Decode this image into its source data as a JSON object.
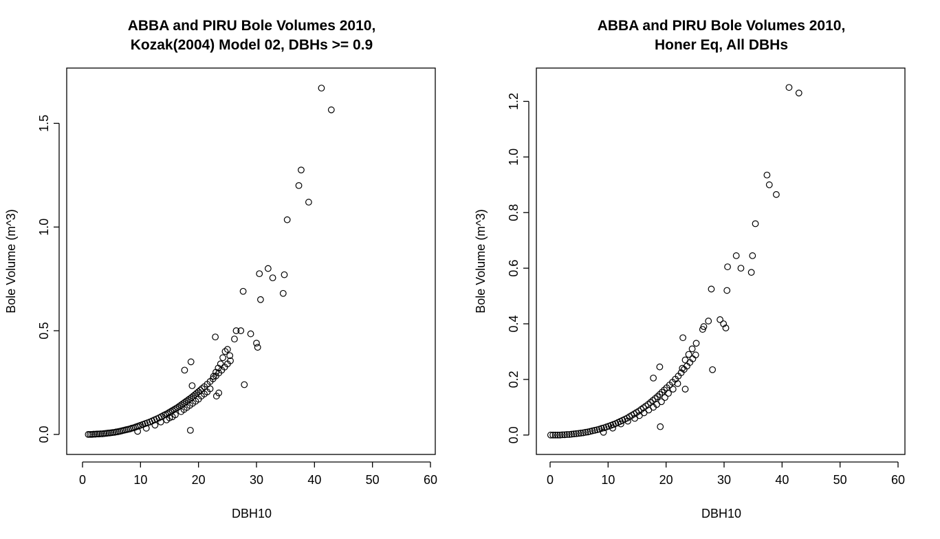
{
  "chart_data": [
    {
      "type": "scatter",
      "title": "ABBA and PIRU Bole Volumes 2010,",
      "subtitle": "Kozak(2004) Model 02, DBHs >= 0.9",
      "xlabel": "DBH10",
      "ylabel": "Bole Volume (m^3)",
      "xlim": [
        0,
        60
      ],
      "ylim": [
        -0.07,
        1.74
      ],
      "xticks": [
        0,
        10,
        20,
        30,
        40,
        50,
        60
      ],
      "yticks": [
        0.0,
        0.5,
        1.0,
        1.5
      ],
      "ytick_labels": [
        "0.0",
        "0.5",
        "1.0",
        "1.5"
      ],
      "grid": false,
      "legend": "none",
      "x": [
        1.0,
        1.3,
        1.6,
        1.9,
        2.2,
        2.5,
        2.8,
        3.1,
        3.4,
        3.7,
        4.0,
        4.3,
        4.6,
        4.9,
        5.2,
        5.5,
        5.8,
        6.1,
        6.4,
        6.7,
        7.0,
        7.3,
        7.6,
        7.9,
        8.2,
        8.5,
        8.8,
        9.1,
        9.4,
        9.7,
        10.0,
        10.4,
        10.8,
        11.2,
        11.6,
        12.0,
        12.4,
        12.8,
        13.2,
        13.6,
        14.0,
        14.3,
        14.6,
        14.9,
        15.2,
        15.5,
        15.8,
        16.1,
        16.4,
        16.7,
        17.0,
        17.3,
        17.6,
        17.9,
        18.2,
        18.5,
        18.8,
        19.1,
        19.4,
        19.7,
        20.0,
        20.3,
        20.6,
        21.0,
        21.5,
        22.0,
        22.5,
        23.0,
        23.5,
        24.0,
        24.5,
        25.0,
        25.5,
        9.5,
        11.0,
        12.5,
        13.5,
        14.5,
        15.0,
        15.5,
        16.0,
        17.0,
        17.5,
        18.0,
        18.5,
        19.0,
        19.5,
        20.0,
        20.5,
        21.0,
        21.5,
        22.0,
        22.6,
        23.0,
        23.4,
        23.8,
        24.2,
        24.6,
        25.0,
        25.4,
        18.7,
        18.6,
        17.6,
        18.9,
        22.9,
        23.1,
        23.5,
        26.2,
        26.5,
        27.3,
        27.7,
        27.9,
        29.0,
        30.0,
        30.2,
        30.5,
        30.7,
        32.0,
        32.8,
        34.6,
        34.8,
        35.3,
        37.3,
        37.7,
        39.0,
        41.2,
        42.9
      ],
      "y": [
        0.0,
        0.0,
        0.0,
        0.001,
        0.001,
        0.002,
        0.002,
        0.003,
        0.003,
        0.004,
        0.005,
        0.006,
        0.007,
        0.008,
        0.009,
        0.01,
        0.012,
        0.013,
        0.015,
        0.017,
        0.019,
        0.021,
        0.023,
        0.025,
        0.027,
        0.03,
        0.032,
        0.035,
        0.038,
        0.041,
        0.044,
        0.048,
        0.052,
        0.056,
        0.06,
        0.065,
        0.07,
        0.075,
        0.08,
        0.086,
        0.092,
        0.096,
        0.1,
        0.105,
        0.11,
        0.115,
        0.12,
        0.125,
        0.13,
        0.136,
        0.142,
        0.148,
        0.154,
        0.16,
        0.166,
        0.172,
        0.178,
        0.185,
        0.192,
        0.199,
        0.206,
        0.213,
        0.221,
        0.23,
        0.242,
        0.255,
        0.268,
        0.282,
        0.296,
        0.31,
        0.325,
        0.34,
        0.355,
        0.015,
        0.03,
        0.045,
        0.06,
        0.07,
        0.08,
        0.085,
        0.095,
        0.11,
        0.12,
        0.13,
        0.14,
        0.15,
        0.16,
        0.17,
        0.185,
        0.195,
        0.205,
        0.22,
        0.28,
        0.3,
        0.32,
        0.34,
        0.37,
        0.4,
        0.41,
        0.38,
        0.35,
        0.02,
        0.31,
        0.235,
        0.47,
        0.185,
        0.2,
        0.46,
        0.5,
        0.5,
        0.69,
        0.24,
        0.485,
        0.44,
        0.42,
        0.775,
        0.65,
        0.8,
        0.755,
        0.68,
        0.77,
        1.035,
        1.2,
        1.275,
        1.12,
        1.67,
        1.565
      ]
    },
    {
      "type": "scatter",
      "title": "ABBA and PIRU Bole Volumes 2010,",
      "subtitle": "Honer Eq, All DBHs",
      "xlabel": "DBH10",
      "ylabel": "Bole Volume (m^3)",
      "xlim": [
        0,
        60
      ],
      "ylim": [
        -0.05,
        1.3
      ],
      "xticks": [
        0,
        10,
        20,
        30,
        40,
        50,
        60
      ],
      "yticks": [
        0.0,
        0.2,
        0.4,
        0.6,
        0.8,
        1.0,
        1.2
      ],
      "ytick_labels": [
        "0.0",
        "0.2",
        "0.4",
        "0.6",
        "0.8",
        "1.0",
        "1.2"
      ],
      "grid": false,
      "legend": "none",
      "x": [
        0.1,
        0.5,
        0.9,
        1.3,
        1.7,
        2.1,
        2.5,
        2.9,
        3.3,
        3.7,
        4.1,
        4.5,
        4.9,
        5.3,
        5.7,
        6.1,
        6.5,
        6.9,
        7.3,
        7.7,
        8.1,
        8.5,
        8.9,
        9.3,
        9.7,
        10.1,
        10.5,
        10.9,
        11.3,
        11.7,
        12.1,
        12.5,
        12.9,
        13.3,
        13.7,
        14.1,
        14.5,
        14.9,
        15.3,
        15.7,
        16.1,
        16.5,
        16.9,
        17.3,
        17.7,
        18.1,
        18.5,
        18.9,
        19.3,
        19.7,
        20.1,
        20.6,
        21.1,
        21.6,
        22.1,
        22.6,
        23.1,
        23.6,
        24.1,
        24.6,
        25.1,
        9.2,
        10.8,
        12.2,
        13.4,
        14.6,
        15.4,
        16.2,
        17.0,
        17.8,
        18.4,
        19.2,
        19.8,
        20.4,
        21.2,
        22.0,
        22.8,
        23.3,
        23.9,
        24.5,
        25.2,
        17.8,
        18.9,
        19.0,
        22.9,
        23.3,
        26.3,
        26.5,
        27.3,
        27.8,
        28.0,
        29.3,
        29.9,
        30.3,
        30.5,
        30.6,
        32.1,
        32.9,
        34.7,
        34.9,
        35.4,
        37.4,
        37.8,
        39.0,
        41.2,
        42.9
      ],
      "y": [
        0.0,
        0.0,
        0.0,
        0.0,
        0.0,
        0.001,
        0.001,
        0.002,
        0.002,
        0.003,
        0.004,
        0.005,
        0.006,
        0.007,
        0.008,
        0.01,
        0.011,
        0.013,
        0.015,
        0.017,
        0.019,
        0.021,
        0.024,
        0.026,
        0.029,
        0.032,
        0.035,
        0.038,
        0.041,
        0.045,
        0.049,
        0.053,
        0.057,
        0.061,
        0.066,
        0.071,
        0.076,
        0.081,
        0.086,
        0.092,
        0.098,
        0.104,
        0.11,
        0.117,
        0.124,
        0.131,
        0.138,
        0.146,
        0.154,
        0.162,
        0.17,
        0.18,
        0.19,
        0.201,
        0.212,
        0.224,
        0.236,
        0.248,
        0.261,
        0.274,
        0.288,
        0.01,
        0.025,
        0.04,
        0.05,
        0.06,
        0.07,
        0.08,
        0.09,
        0.1,
        0.11,
        0.12,
        0.135,
        0.15,
        0.165,
        0.185,
        0.24,
        0.27,
        0.29,
        0.31,
        0.33,
        0.205,
        0.245,
        0.03,
        0.35,
        0.165,
        0.38,
        0.39,
        0.41,
        0.525,
        0.235,
        0.415,
        0.4,
        0.385,
        0.52,
        0.605,
        0.645,
        0.6,
        0.585,
        0.645,
        0.76,
        0.935,
        0.9,
        0.865,
        1.25,
        1.23
      ]
    }
  ]
}
